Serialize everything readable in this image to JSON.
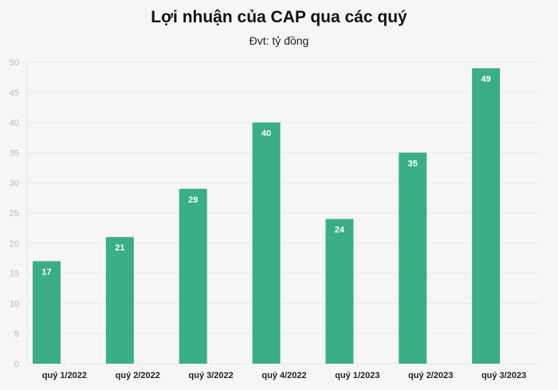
{
  "chart_data": {
    "type": "bar",
    "title": "Lợi nhuận của CAP qua các quý",
    "subtitle": "Đvt: tỷ đồng",
    "categories": [
      "quý 1/2022",
      "quý 2/2022",
      "quý 3/2022",
      "quý 4/2022",
      "quý 1/2023",
      "quý 2/2023",
      "quý 3/2023"
    ],
    "values": [
      17,
      21,
      29,
      40,
      24,
      35,
      49
    ],
    "ylim": [
      0,
      50
    ],
    "yticks": [
      0,
      5,
      10,
      15,
      20,
      25,
      30,
      35,
      40,
      45,
      50
    ],
    "grid": true,
    "bar_color": "#3aae84",
    "xlabel": "",
    "ylabel": ""
  }
}
